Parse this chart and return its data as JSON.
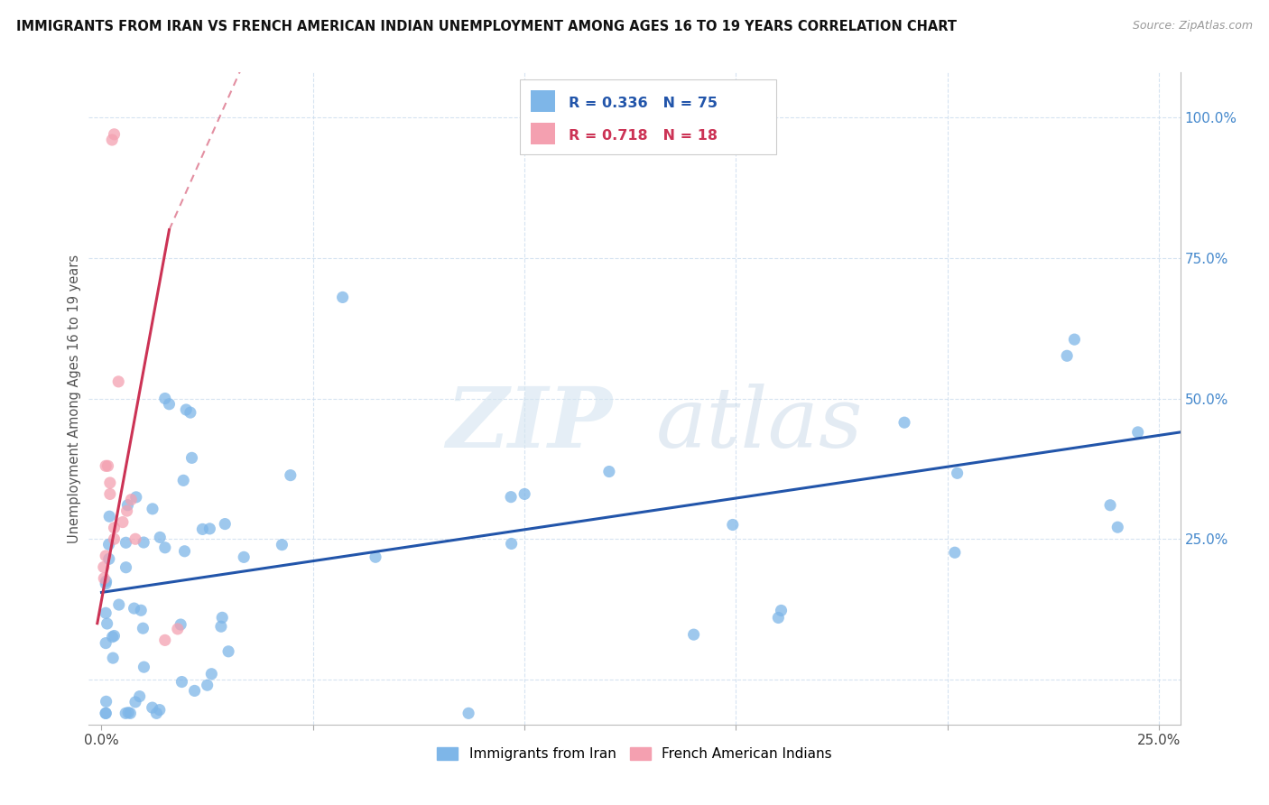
{
  "title": "IMMIGRANTS FROM IRAN VS FRENCH AMERICAN INDIAN UNEMPLOYMENT AMONG AGES 16 TO 19 YEARS CORRELATION CHART",
  "source": "Source: ZipAtlas.com",
  "ylabel": "Unemployment Among Ages 16 to 19 years",
  "legend1_label": "R = 0.336   N = 75",
  "legend2_label": "R = 0.718   N = 18",
  "legend_bottom1": "Immigrants from Iran",
  "legend_bottom2": "French American Indians",
  "blue_color": "#7EB6E8",
  "pink_color": "#F4A0B0",
  "blue_line_color": "#2255AA",
  "pink_line_color": "#CC3355",
  "watermark_zip": "ZIP",
  "watermark_atlas": "atlas",
  "grid_color": "#CCDDEE",
  "blue_r": "0.336",
  "blue_n": "75",
  "pink_r": "0.718",
  "pink_n": "18"
}
